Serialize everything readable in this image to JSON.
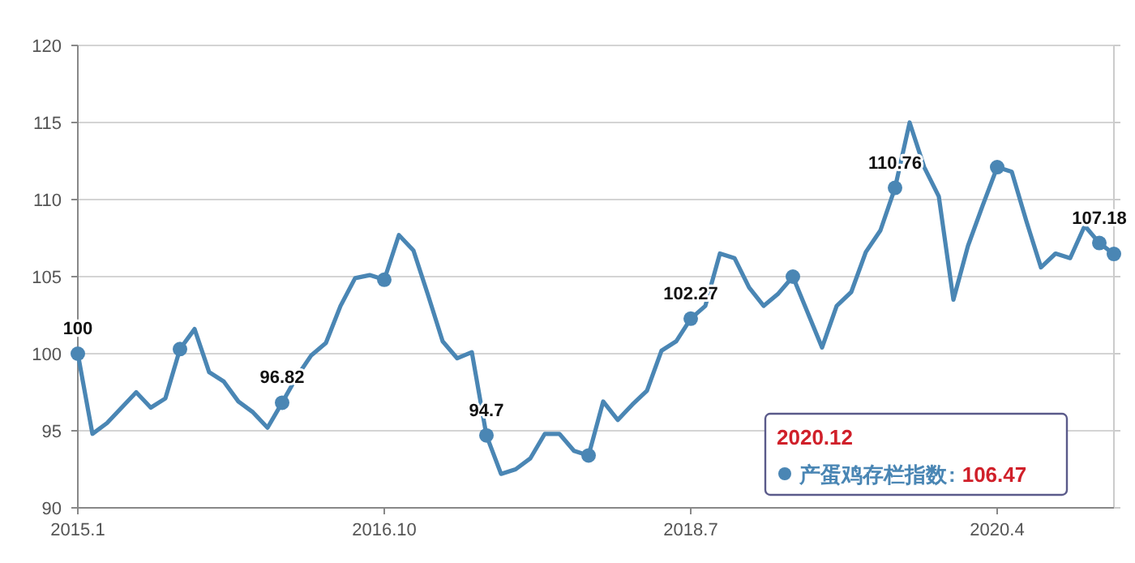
{
  "chart_data": {
    "type": "line",
    "x": [
      "2015-01",
      "2015-02",
      "2015-03",
      "2015-04",
      "2015-05",
      "2015-06",
      "2015-07",
      "2015-08",
      "2015-09",
      "2015-10",
      "2015-11",
      "2015-12",
      "2016-01",
      "2016-02",
      "2016-03",
      "2016-04",
      "2016-05",
      "2016-06",
      "2016-07",
      "2016-08",
      "2016-09",
      "2016-10",
      "2016-11",
      "2016-12",
      "2017-01",
      "2017-02",
      "2017-03",
      "2017-04",
      "2017-05",
      "2017-06",
      "2017-07",
      "2017-08",
      "2017-09",
      "2017-10",
      "2017-11",
      "2017-12",
      "2018-01",
      "2018-02",
      "2018-03",
      "2018-04",
      "2018-05",
      "2018-06",
      "2018-07",
      "2018-08",
      "2018-09",
      "2018-10",
      "2018-11",
      "2018-12",
      "2019-01",
      "2019-02",
      "2019-03",
      "2019-04",
      "2019-05",
      "2019-06",
      "2019-07",
      "2019-08",
      "2019-09",
      "2019-10",
      "2019-11",
      "2019-12",
      "2020-01",
      "2020-02",
      "2020-03",
      "2020-04",
      "2020-05",
      "2020-06",
      "2020-07",
      "2020-08",
      "2020-09",
      "2020-10",
      "2020-11",
      "2020-12"
    ],
    "series": [
      {
        "name": "产蛋鸡存栏指数",
        "color": "#4a86b4",
        "values": [
          100,
          94.8,
          95.5,
          96.5,
          97.5,
          96.5,
          97.1,
          100.3,
          101.6,
          98.8,
          98.2,
          96.9,
          96.2,
          95.2,
          96.82,
          98.5,
          99.9,
          100.7,
          103.1,
          104.9,
          105.1,
          104.8,
          107.7,
          106.7,
          103.8,
          100.8,
          99.7,
          100.1,
          94.7,
          92.2,
          92.5,
          93.2,
          94.8,
          94.8,
          93.7,
          93.4,
          96.9,
          95.7,
          96.7,
          97.6,
          100.2,
          100.8,
          102.27,
          103.1,
          106.5,
          106.2,
          104.3,
          103.1,
          103.9,
          105,
          102.7,
          100.4,
          103.1,
          104,
          106.6,
          108,
          110.76,
          115,
          112.1,
          110.2,
          103.5,
          107,
          109.6,
          112.1,
          111.8,
          108.6,
          105.6,
          106.5,
          106.2,
          108.3,
          107.18,
          106.47
        ],
        "value_labels": [
          "100",
          null,
          null,
          null,
          null,
          null,
          null,
          null,
          null,
          null,
          null,
          null,
          null,
          null,
          "96.82",
          null,
          null,
          null,
          null,
          null,
          null,
          null,
          null,
          null,
          null,
          null,
          null,
          null,
          "94.7",
          null,
          null,
          null,
          null,
          null,
          null,
          null,
          null,
          null,
          null,
          null,
          null,
          null,
          "102.27",
          null,
          null,
          null,
          null,
          null,
          null,
          null,
          null,
          null,
          null,
          null,
          null,
          null,
          "110.76",
          null,
          null,
          null,
          null,
          null,
          null,
          null,
          null,
          null,
          null,
          null,
          null,
          null,
          "107.18",
          null
        ]
      },
      {
        "type": "scatter",
        "color": "#4a86b4",
        "marker": "circle",
        "x": [
          "2015-01",
          "2015-08",
          "2016-03",
          "2016-10",
          "2017-05",
          "2017-12",
          "2018-07",
          "2019-02",
          "2019-09",
          "2020-04",
          "2020-11",
          "2020-12"
        ],
        "values": [
          100,
          100.3,
          96.82,
          104.8,
          94.7,
          93.4,
          102.27,
          105,
          110.76,
          112.1,
          107.18,
          106.47
        ]
      }
    ],
    "xlim": [
      "2015-01",
      "2020-12"
    ],
    "xticks": [
      {
        "value": "2015-01",
        "label": "2015.1"
      },
      {
        "value": "2016-10",
        "label": "2016.10"
      },
      {
        "value": "2018-07",
        "label": "2018.7"
      },
      {
        "value": "2020-04",
        "label": "2020.4"
      }
    ],
    "ylim": [
      90,
      120
    ],
    "yticks": [
      90,
      95,
      100,
      105,
      110,
      115,
      120
    ],
    "grid": "y",
    "legend": "bottom right",
    "annotations": [
      "2020.12",
      ":",
      "106.47"
    ]
  }
}
